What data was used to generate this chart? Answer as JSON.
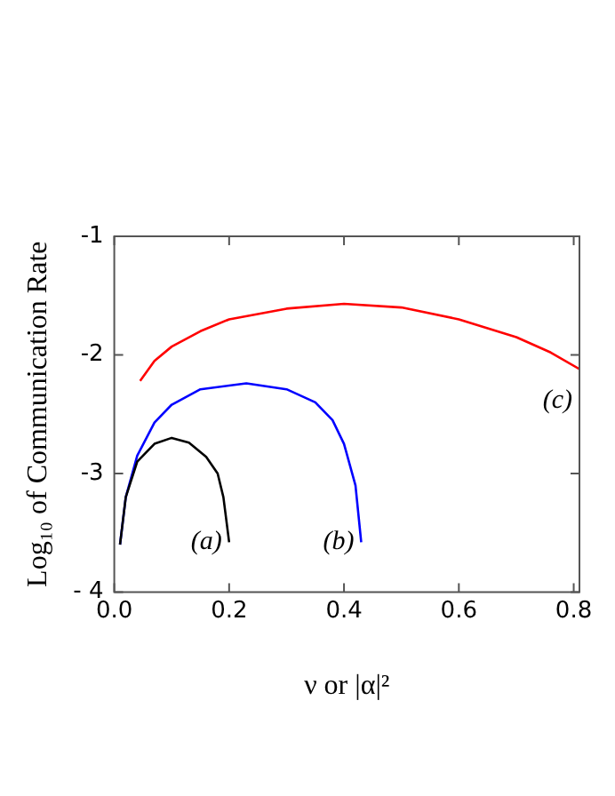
{
  "chart_data": {
    "type": "line",
    "xlabel": "ν or |α|²",
    "ylabel": "Log₁₀ of Communication Rate",
    "xlim": [
      0,
      0.81
    ],
    "xticks": [
      {
        "value": 0,
        "label": "0.0"
      },
      0.2,
      0.4,
      0.6,
      0.8
    ],
    "ylim": [
      -4,
      -1
    ],
    "yticks": [
      {
        "value": -4,
        "label": "- 4"
      },
      {
        "value": -3,
        "label": "-3"
      },
      {
        "value": -2,
        "label": "-2"
      },
      {
        "value": -1,
        "label": "-1"
      }
    ],
    "grid": false,
    "legend": false,
    "marker": "none",
    "line_style": "solid",
    "series": [
      {
        "color": "#000000",
        "x": [
          0.01,
          0.02,
          0.04,
          0.07,
          0.1,
          0.13,
          0.16,
          0.18,
          0.19,
          0.2
        ],
        "values": [
          -3.6,
          -3.2,
          -2.9,
          -2.75,
          -2.7,
          -2.74,
          -2.86,
          -3.0,
          -3.2,
          -3.58
        ]
      },
      {
        "color": "#0000ff",
        "x": [
          0.01,
          0.02,
          0.04,
          0.07,
          0.1,
          0.15,
          0.23,
          0.3,
          0.35,
          0.38,
          0.4,
          0.42,
          0.43
        ],
        "values": [
          -3.6,
          -3.2,
          -2.85,
          -2.57,
          -2.42,
          -2.29,
          -2.24,
          -2.29,
          -2.4,
          -2.55,
          -2.75,
          -3.1,
          -3.58
        ]
      },
      {
        "color": "#ff0000",
        "x": [
          0.045,
          0.07,
          0.1,
          0.15,
          0.2,
          0.3,
          0.4,
          0.5,
          0.6,
          0.7,
          0.76,
          0.81
        ],
        "values": [
          -2.22,
          -2.05,
          -1.93,
          -1.8,
          -1.7,
          -1.61,
          -1.57,
          -1.6,
          -1.7,
          -1.85,
          -1.98,
          -2.12
        ]
      }
    ],
    "annotations": [
      "(a)",
      "(b)",
      "(c)"
    ]
  }
}
